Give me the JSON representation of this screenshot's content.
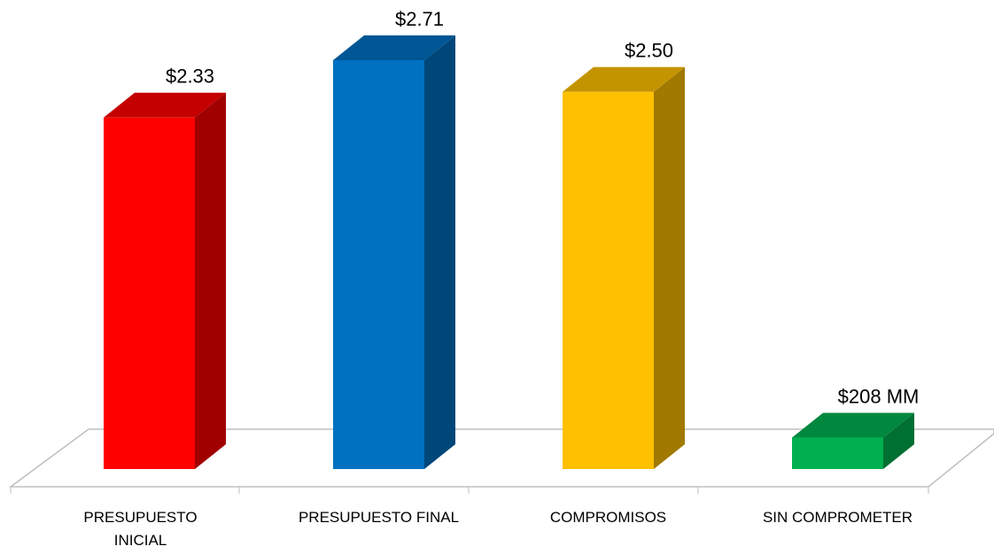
{
  "chart_data": {
    "type": "bar3d",
    "categories": [
      "PRESUPUESTO INICIAL",
      "PRESUPUESTO FINAL",
      "COMPROMISOS",
      "SIN COMPROMETER"
    ],
    "values": [
      2.33,
      2.71,
      2.5,
      0.208
    ],
    "value_labels": [
      "$2.33",
      "$2.71",
      "$2.50",
      "$208 MM"
    ],
    "colors": [
      "#ff0000",
      "#0070c0",
      "#ffc000",
      "#00b050"
    ]
  }
}
